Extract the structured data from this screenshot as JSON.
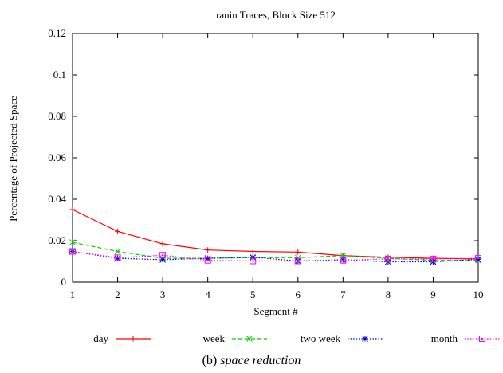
{
  "figure": {
    "label": "(b)",
    "caption": "space reduction"
  },
  "chart_data": {
    "type": "line",
    "title": "ranin Traces, Block Size 512",
    "xlabel": "Segment #",
    "ylabel": "Percentage of Projected Space",
    "xlim": [
      1,
      10
    ],
    "ylim": [
      0,
      0.12
    ],
    "xticks": [
      "1",
      "2",
      "3",
      "4",
      "5",
      "6",
      "7",
      "8",
      "9",
      "10"
    ],
    "yticks": [
      "0",
      "0.02",
      "0.04",
      "0.06",
      "0.08",
      "0.1",
      "0.12"
    ],
    "grid": false,
    "legend_position": "bottom",
    "x": [
      1,
      2,
      3,
      4,
      5,
      6,
      7,
      8,
      9,
      10
    ],
    "series": [
      {
        "name": "day",
        "color": "#ff0000",
        "dash": "solid",
        "marker": "plus",
        "values": [
          0.035,
          0.0245,
          0.0185,
          0.0155,
          0.0148,
          0.0145,
          0.0128,
          0.012,
          0.0115,
          0.0112
        ]
      },
      {
        "name": "week",
        "color": "#00cc00",
        "dash": "dashed",
        "marker": "cross",
        "values": [
          0.0192,
          0.0148,
          0.0115,
          0.0115,
          0.0118,
          0.0118,
          0.0128,
          0.0115,
          0.0105,
          0.0105
        ]
      },
      {
        "name": "two week",
        "color": "#0000cc",
        "dash": "dotted",
        "marker": "star",
        "values": [
          0.0148,
          0.0115,
          0.0108,
          0.0115,
          0.012,
          0.0102,
          0.0108,
          0.0098,
          0.0098,
          0.011
        ]
      },
      {
        "name": "month",
        "color": "#ff00ff",
        "dash": "dotted",
        "marker": "square",
        "values": [
          0.0148,
          0.0118,
          0.013,
          0.0105,
          0.0102,
          0.0102,
          0.0105,
          0.0112,
          0.0112,
          0.0115
        ]
      }
    ]
  }
}
